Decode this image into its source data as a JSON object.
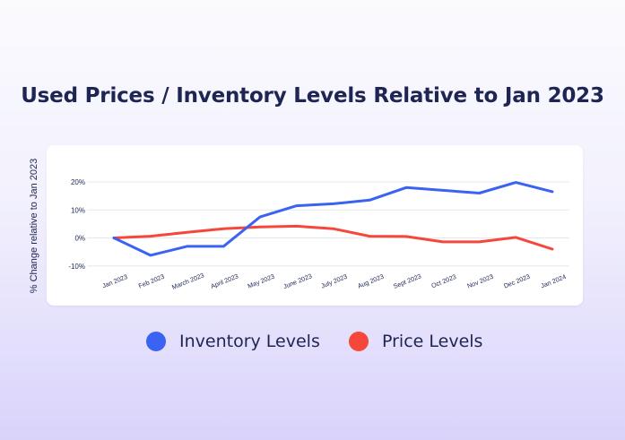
{
  "chart_data": {
    "type": "line",
    "title": "Used Prices / Inventory Levels Relative to Jan 2023",
    "ylabel": "% Change relative to Jan 2023",
    "xlabel": "",
    "categories": [
      "Jan 2023",
      "Feb 2023",
      "March 2023",
      "April 2023",
      "May 2023",
      "June 2023",
      "July 2023",
      "Aug 2023",
      "Sept 2023",
      "Oct 2023",
      "Nov 2023",
      "Dec 2023",
      "Jan 2024"
    ],
    "y_ticks": [
      20,
      10,
      0,
      -10
    ],
    "y_tick_labels": [
      "20%",
      "10%",
      "0%",
      "-10%"
    ],
    "ylim": [
      -10,
      20
    ],
    "grid": "horizontal",
    "legend_position": "bottom",
    "series": [
      {
        "name": "Inventory Levels",
        "color": "#3a63f2",
        "values": [
          0,
          -6.2,
          -3,
          -3,
          7.5,
          11.5,
          12.2,
          13.5,
          18,
          17,
          16,
          19.8,
          16.5
        ]
      },
      {
        "name": "Price Levels",
        "color": "#f5473b",
        "values": [
          0,
          0.6,
          2,
          3.3,
          3.9,
          4.2,
          3.3,
          0.6,
          0.5,
          -1.4,
          -1.4,
          0.2,
          -4
        ]
      }
    ]
  }
}
